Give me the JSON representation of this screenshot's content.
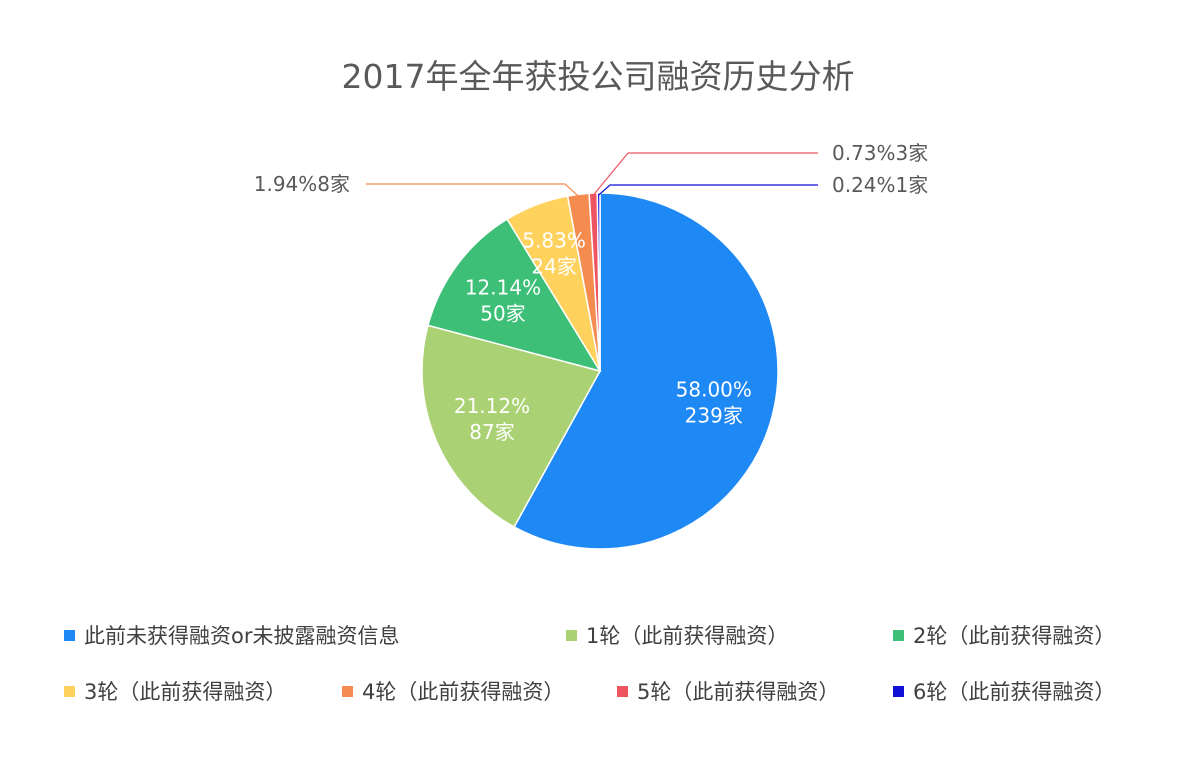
{
  "chart_data": {
    "type": "pie",
    "title": "2017年全年获投公司融资历史分析",
    "slices": [
      {
        "label": "此前未获得融资or未披露融资信息",
        "percent": 58.0,
        "count_label": "239家",
        "value": 239,
        "color": "#1e88f5"
      },
      {
        "label": "1轮（此前获得融资）",
        "percent": 21.12,
        "count_label": "87家",
        "value": 87,
        "color": "#aad173"
      },
      {
        "label": "2轮（此前获得融资）",
        "percent": 12.14,
        "count_label": "50家",
        "value": 50,
        "color": "#3dbf78"
      },
      {
        "label": "3轮（此前获得融资）",
        "percent": 5.83,
        "count_label": "24家",
        "value": 24,
        "color": "#ffd25e"
      },
      {
        "label": "4轮（此前获得融资）",
        "percent": 1.94,
        "count_label": "8家",
        "value": 8,
        "color": "#f58c4f"
      },
      {
        "label": "5轮（此前获得融资）",
        "percent": 0.73,
        "count_label": "3家",
        "value": 3,
        "color": "#ee5560"
      },
      {
        "label": "6轮（此前获得融资）",
        "percent": 0.24,
        "count_label": "1家",
        "value": 1,
        "color": "#1010d6"
      }
    ],
    "data_labels": [
      "58.00%",
      "239家",
      "21.12%",
      "87家",
      "12.14%",
      "50家",
      "5.83%",
      "24家",
      "1.94%8家",
      "0.73%3家",
      "0.24%1家"
    ],
    "legend_position": "bottom"
  }
}
